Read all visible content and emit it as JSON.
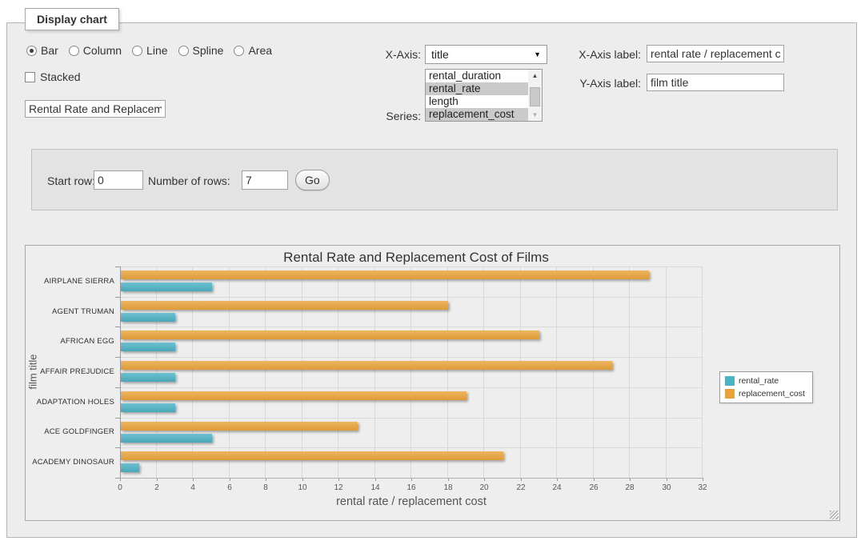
{
  "display_chart": {
    "legend_title": "Display chart",
    "chart_types": [
      {
        "label": "Bar",
        "selected": true
      },
      {
        "label": "Column",
        "selected": false
      },
      {
        "label": "Line",
        "selected": false
      },
      {
        "label": "Spline",
        "selected": false
      },
      {
        "label": "Area",
        "selected": false
      }
    ],
    "stacked_label": "Stacked",
    "stacked_checked": false,
    "chart_title_value": "Rental Rate and Replacement Cost of Films",
    "x_axis_field": {
      "label": "X-Axis:",
      "selected": "title"
    },
    "series_field": {
      "label": "Series:",
      "options": [
        {
          "label": "rental_duration",
          "selected": false
        },
        {
          "label": "rental_rate",
          "selected": true
        },
        {
          "label": "length",
          "selected": false
        },
        {
          "label": "replacement_cost",
          "selected": true
        }
      ]
    },
    "x_axis_label_field": {
      "label": "X-Axis label:",
      "value": "rental rate / replacement cost"
    },
    "y_axis_label_field": {
      "label": "Y-Axis label:",
      "value": "film title"
    }
  },
  "row_controls": {
    "start_row_label": "Start row:",
    "start_row_value": "0",
    "num_rows_label": "Number of rows:",
    "num_rows_value": "7",
    "go_label": "Go"
  },
  "chart_data": {
    "type": "bar",
    "title": "Rental Rate and Replacement Cost of Films",
    "categories": [
      "AIRPLANE SIERRA",
      "AGENT TRUMAN",
      "AFRICAN EGG",
      "AFFAIR PREJUDICE",
      "ADAPTATION HOLES",
      "ACE GOLDFINGER",
      "ACADEMY DINOSAUR"
    ],
    "series": [
      {
        "name": "rental_rate",
        "color": "#4db2c4",
        "values": [
          4.99,
          2.99,
          2.99,
          2.99,
          2.99,
          4.99,
          0.99
        ]
      },
      {
        "name": "replacement_cost",
        "color": "#eba43c",
        "values": [
          28.99,
          17.99,
          22.99,
          26.99,
          18.99,
          12.99,
          20.99
        ]
      }
    ],
    "xlabel": "rental rate / replacement cost",
    "ylabel": "film title",
    "xlim": [
      0,
      32
    ],
    "x_ticks": [
      0,
      2,
      4,
      6,
      8,
      10,
      12,
      14,
      16,
      18,
      20,
      22,
      24,
      26,
      28,
      30,
      32
    ],
    "grid": true,
    "legend_position": "right-middle"
  }
}
